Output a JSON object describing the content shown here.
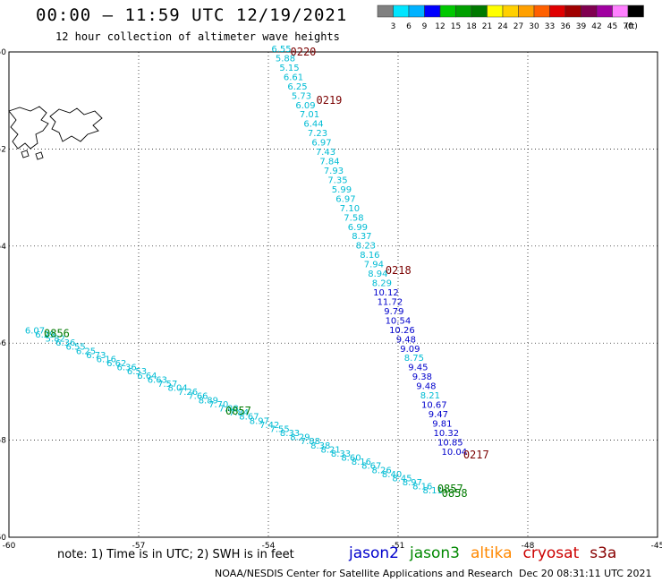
{
  "header": {
    "title": "00:00 – 11:59 UTC 12/19/2021",
    "subtitle": "12 hour collection of altimeter wave heights"
  },
  "legend": {
    "labels": [
      "3",
      "6",
      "9",
      "12",
      "15",
      "18",
      "21",
      "24",
      "27",
      "30",
      "33",
      "36",
      "39",
      "42",
      "45",
      "70",
      "(ft)"
    ],
    "colors": [
      "#808080",
      "#00e5ff",
      "#00b2ff",
      "#0000ff",
      "#00c800",
      "#00a000",
      "#007a00",
      "#ffff00",
      "#ffd000",
      "#ffa000",
      "#ff6000",
      "#e00000",
      "#a00000",
      "#800050",
      "#a000a0",
      "#ff80ff",
      "#000000"
    ]
  },
  "map": {
    "lon_ticks": [
      "-60",
      "-57",
      "-54",
      "-51",
      "-48",
      "-45"
    ],
    "lat_ticks": [
      "-50",
      "-52",
      "-54",
      "-56",
      "-58",
      "-60"
    ],
    "lon_range": [
      -60,
      -45
    ],
    "lat_range": [
      -60,
      -50
    ]
  },
  "tracks": [
    {
      "satellite": "cryosat",
      "passes": [
        {
          "time": "0220",
          "lat": -50.0,
          "lon": -53.7
        },
        {
          "time": "0219",
          "lat": -51.0,
          "lon": -53.1
        },
        {
          "time": "0218",
          "lat": -54.5,
          "lon": -51.5
        },
        {
          "time": "0217",
          "lat": -58.3,
          "lon": -49.7
        }
      ],
      "values": [
        "6.55",
        "5.88",
        "5.15",
        "6.61",
        "6.25",
        "5.73",
        "6.09",
        "7.01",
        "6.44",
        "7.23",
        "6.97",
        "7.43",
        "7.84",
        "7.93",
        "7.35",
        "5.99",
        "6.97",
        "7.10",
        "7.58",
        "6.99",
        "8.37",
        "8.23",
        "8.16",
        "7.94",
        "8.94",
        "8.29",
        "10.12",
        "11.72",
        "9.79",
        "10.54",
        "10.26",
        "9.48",
        "9.09",
        "8.75",
        "9.45",
        "9.38",
        "9.48",
        "8.21",
        "10.67",
        "9.47",
        "9.81",
        "10.32",
        "10.85",
        "10.04"
      ]
    },
    {
      "satellite": "jason3",
      "passes": [
        {
          "time": "0856",
          "lat": -55.8,
          "lon": -59.4
        },
        {
          "time": "0857",
          "lat": -57.4,
          "lon": -55.2
        },
        {
          "time": "0857",
          "lat": -59.0,
          "lon": -50.3
        },
        {
          "time": "0858",
          "lat": -59.1,
          "lon": -50.2
        }
      ],
      "values": [
        "6.07",
        "6.29",
        "5.82",
        "6.36",
        "6.55",
        "6.25",
        "6.73",
        "6.16",
        "6.62",
        "6.36",
        "6.53",
        "6.64",
        "6.63",
        "7.57",
        "8.04",
        "7.26",
        "7.66",
        "8.89",
        "7.70",
        "7.88",
        "7.84",
        "8.67",
        "8.97",
        "7.42",
        "7.55",
        "8.33",
        "8.29",
        "7.88",
        "8.38",
        "8.21",
        "8.33",
        "8.60",
        "8.16",
        "8.67",
        "8.26",
        "8.40",
        "8.45",
        "8.97",
        "8.16",
        "8.11"
      ]
    }
  ],
  "note": "note: 1) Time is in UTC; 2) SWH is in feet",
  "satellites": [
    {
      "name": "jason2",
      "color": "#0000cc"
    },
    {
      "name": "jason3",
      "color": "#008800"
    },
    {
      "name": "altika",
      "color": "#ff8800"
    },
    {
      "name": "cryosat",
      "color": "#cc0000"
    },
    {
      "name": "s3a",
      "color": "#880000"
    }
  ],
  "footer": {
    "credit": "NOAA/NESDIS Center for Satellite Applications and Research",
    "timestamp": "Dec 20 08:31:11 UTC 2021"
  }
}
